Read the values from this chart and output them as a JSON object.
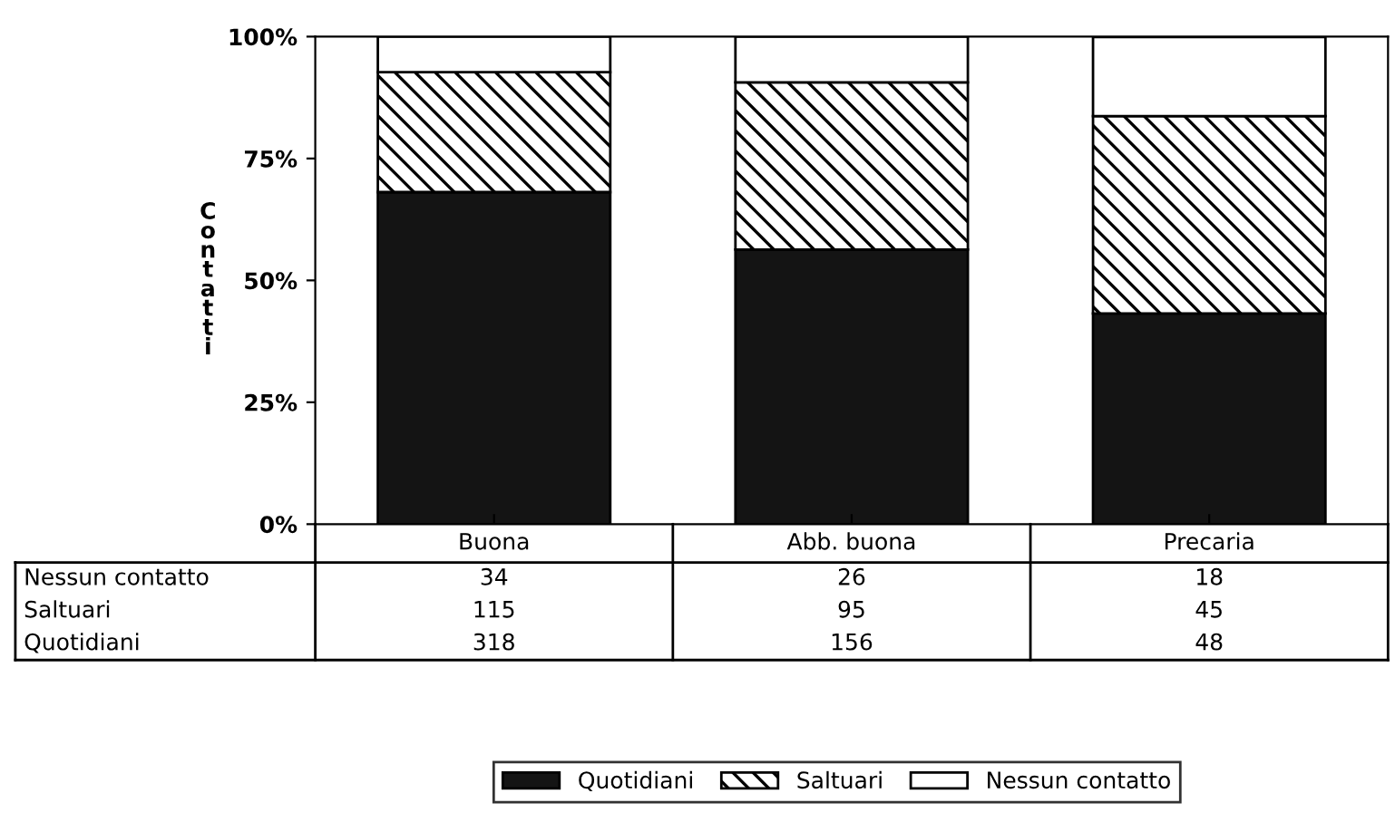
{
  "chart_data": {
    "type": "bar",
    "stacked": true,
    "ylabel": "Contatti",
    "categories": [
      "Buona",
      "Abb. buona",
      "Precaria"
    ],
    "series": [
      {
        "name": "Quotidiani",
        "color": "#141414",
        "values": [
          68.1,
          56.3,
          43.2
        ]
      },
      {
        "name": "Saltuari",
        "color": "#000000",
        "values": [
          24.6,
          34.3,
          40.5
        ]
      },
      {
        "name": "Nessun contatto",
        "color": "#ffffff",
        "values": [
          7.3,
          9.4,
          16.2
        ]
      }
    ],
    "annotations": [
      "34",
      "26",
      "18",
      "115",
      "95",
      "45",
      "318",
      "156",
      "48"
    ],
    "ylim": [
      0,
      100
    ],
    "yticks": [
      {
        "value": 0,
        "label": "0%"
      },
      {
        "value": 25,
        "label": "25%"
      },
      {
        "value": 50,
        "label": "50%"
      },
      {
        "value": 75,
        "label": "75%"
      },
      {
        "value": 100,
        "label": "100%"
      }
    ],
    "grid": false,
    "legend": "bottom"
  }
}
